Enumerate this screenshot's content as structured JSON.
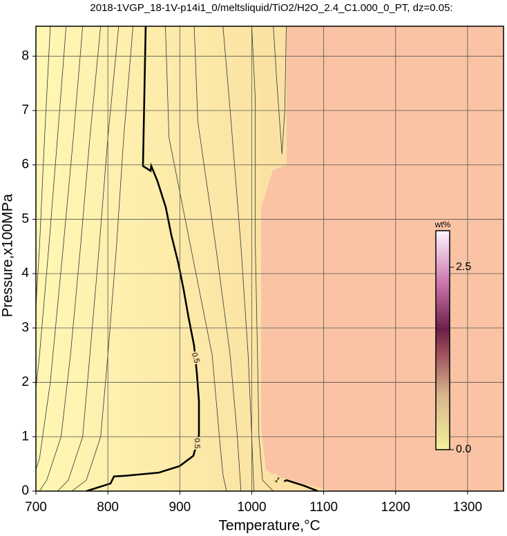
{
  "chart_data": {
    "type": "contour",
    "title": "2018-1VGP_18-1V-p14i1_0/meltsliquid/TiO2/H2O_2.4_C1.000_0_PT, dz=0.05:",
    "xlabel": "Temperature,°C",
    "ylabel": "Pressure,x100MPa",
    "xlim": [
      700,
      1350
    ],
    "ylim": [
      0,
      8.55
    ],
    "xticks": [
      700,
      800,
      900,
      1000,
      1100,
      1200,
      1300
    ],
    "yticks": [
      0,
      1,
      2,
      3,
      4,
      5,
      6,
      7,
      8
    ],
    "grid": true,
    "regions": [
      {
        "color": "#f9c3a4",
        "x": [
          1048.5,
          1048.5,
          1029.3,
          1013,
          1013,
          1019.7,
          1034,
          1110.9,
          1350,
          1350
        ],
        "y": [
          8.55,
          6.0,
          5.9,
          5.22,
          1.16,
          0.39,
          0.27,
          0,
          0,
          8.55
        ]
      }
    ],
    "contours": [
      {
        "level": 0.5,
        "x": [
          852.6,
          848.8,
          859.4,
          860.3,
          869.0,
          880.5,
          888.2,
          897.8,
          905.4,
          912.2,
          919.8,
          923.7,
          926.6,
          926.6,
          918.9,
          899.7,
          870.9,
          822.9,
          808.5,
          803.7,
          770.1
        ],
        "y": [
          8.55,
          5.98,
          5.89,
          5.98,
          5.7,
          5.22,
          4.71,
          4.2,
          3.7,
          3.19,
          2.68,
          2.17,
          1.66,
          1.03,
          0.65,
          0.46,
          0.34,
          0.28,
          0.27,
          0.14,
          0
        ]
      },
      {
        "level": 1,
        "x": [
          1034,
          1036,
          1048.5,
          1072.5,
          1091.7
        ],
        "y": [
          0.29,
          0.14,
          0.2,
          0.1,
          0
        ]
      },
      {
        "x": [
          720,
          712,
          705,
          700
        ],
        "y": [
          8.55,
          6.5,
          4.5,
          3.4
        ]
      },
      {
        "x": [
          742,
          730,
          718,
          705,
          700
        ],
        "y": [
          8.55,
          6.5,
          4.5,
          2.5,
          1.9
        ]
      },
      {
        "x": [
          765,
          752,
          738,
          720,
          705,
          700
        ],
        "y": [
          8.55,
          6.5,
          4.5,
          2.0,
          0.6,
          0.4
        ]
      },
      {
        "x": [
          790,
          775,
          762,
          748,
          735,
          715,
          705
        ],
        "y": [
          8.55,
          6.5,
          4.5,
          2.5,
          1.0,
          0.2,
          0
        ]
      },
      {
        "x": [
          815,
          800,
          788,
          775,
          765,
          745,
          730
        ],
        "y": [
          8.55,
          6.5,
          4.5,
          2.5,
          1.0,
          0.2,
          0
        ]
      },
      {
        "x": [
          835,
          822,
          812,
          800,
          790,
          770,
          750
        ],
        "y": [
          8.55,
          6.5,
          4.5,
          2.5,
          1.0,
          0.2,
          0
        ]
      },
      {
        "x": [
          880,
          885,
          915,
          945,
          955,
          960,
          965
        ],
        "y": [
          8.55,
          6.5,
          4.5,
          2.5,
          1.0,
          0.3,
          0
        ]
      },
      {
        "x": [
          920,
          925,
          950,
          970,
          980,
          985
        ],
        "y": [
          8.55,
          6.8,
          4.5,
          2.5,
          1.0,
          0
        ]
      },
      {
        "x": [
          960,
          970,
          985,
          995,
          1000,
          1003
        ],
        "y": [
          8.55,
          7.0,
          4.5,
          2.5,
          1.0,
          0
        ]
      },
      {
        "x": [
          1000,
          1005,
          1005,
          1008,
          1010,
          1015,
          1030
        ],
        "y": [
          8.55,
          7.2,
          4.5,
          2.5,
          1.0,
          0.2,
          0
        ]
      },
      {
        "x": [
          1030,
          1035,
          1042,
          1046,
          1048
        ],
        "y": [
          8.55,
          7.5,
          6.2,
          7.0,
          8.55
        ]
      }
    ],
    "colorbar_label": "wt%",
    "clim": [
      0,
      3.0
    ],
    "cticks": [
      {
        "value": 0,
        "label": "0.0"
      },
      {
        "value": 2.5,
        "label": "2.5"
      }
    ]
  }
}
